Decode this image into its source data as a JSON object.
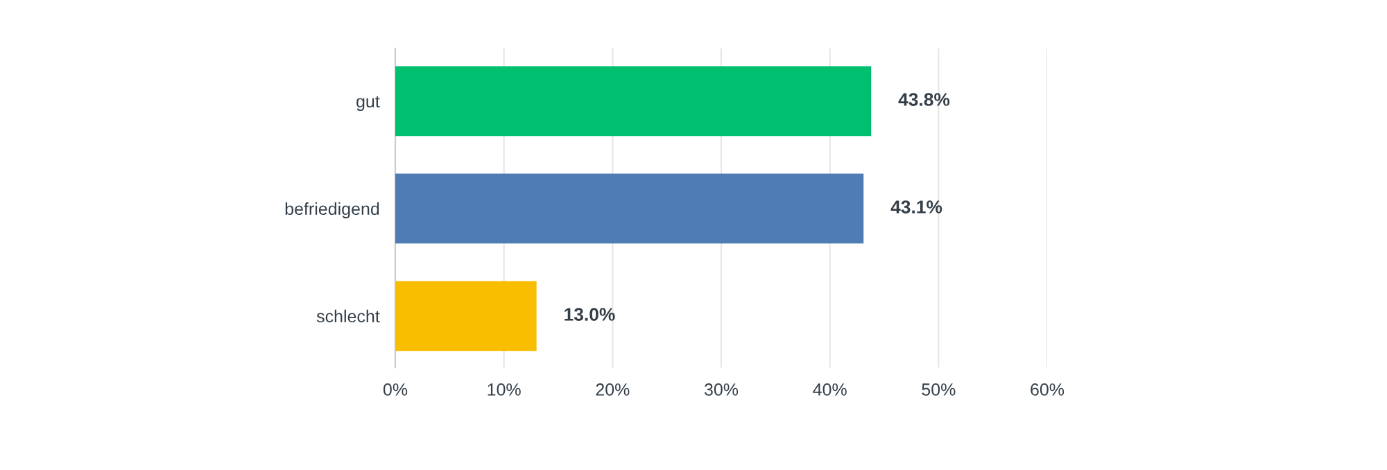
{
  "chart_data": {
    "type": "bar",
    "orientation": "horizontal",
    "categories": [
      "gut",
      "befriedigend",
      "schlecht"
    ],
    "values": [
      43.8,
      43.1,
      13.0
    ],
    "colors": [
      "#00bf6f",
      "#507cb6",
      "#f9be00"
    ],
    "value_labels": [
      "43.8%",
      "43.1%",
      "13.0%"
    ],
    "xlim": [
      0,
      60
    ],
    "xticks": [
      {
        "value": 0,
        "label": "0%"
      },
      {
        "value": 10,
        "label": "10%"
      },
      {
        "value": 20,
        "label": "20%"
      },
      {
        "value": 30,
        "label": "30%"
      },
      {
        "value": 40,
        "label": "40%"
      },
      {
        "value": 50,
        "label": "50%"
      },
      {
        "value": 60,
        "label": "60%"
      }
    ],
    "grid": "x"
  }
}
